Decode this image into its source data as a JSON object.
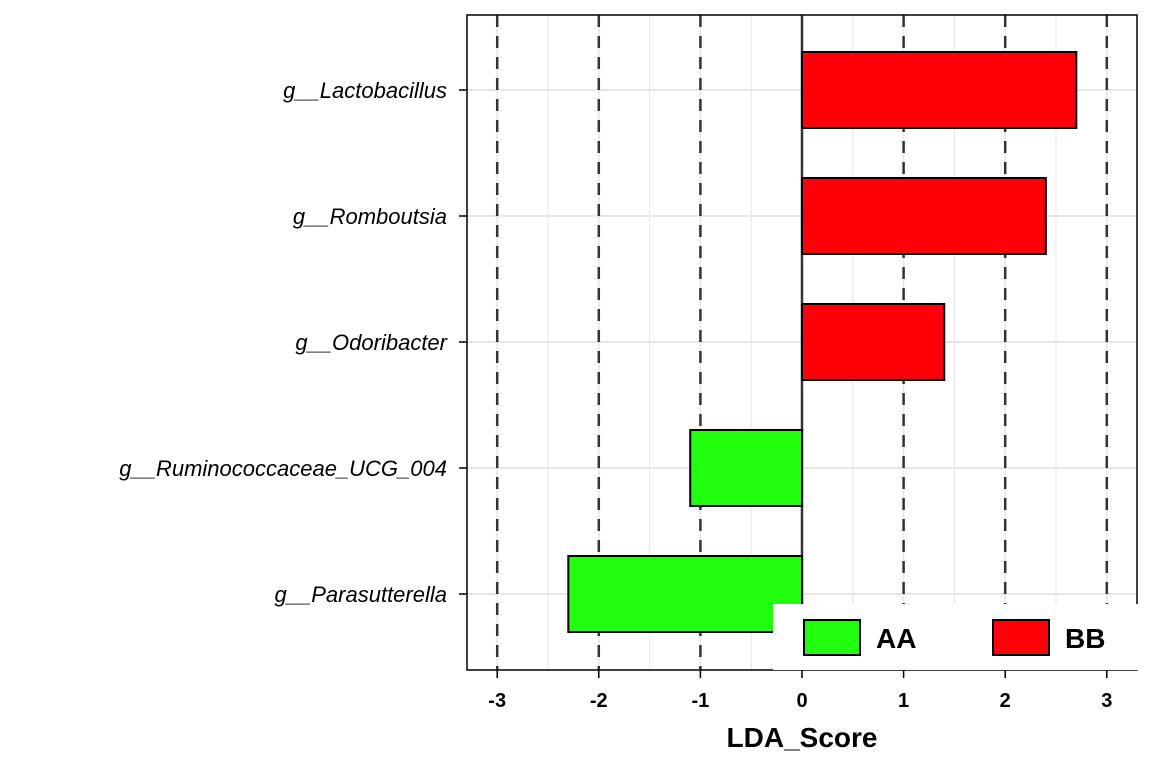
{
  "chart_data": {
    "type": "bar",
    "orientation": "horizontal",
    "categories": [
      "g__Lactobacillus",
      "g__Romboutsia",
      "g__Odoribacter",
      "g__Ruminococcaceae_UCG_004",
      "g__Parasutterella"
    ],
    "values": [
      2.7,
      2.4,
      1.4,
      -1.1,
      -2.3
    ],
    "groups": [
      "BB",
      "BB",
      "BB",
      "AA",
      "AA"
    ],
    "legend": [
      {
        "name": "AA",
        "color": "#22ff0e"
      },
      {
        "name": "BB",
        "color": "#ff0008"
      }
    ],
    "xlabel": "LDA_Score",
    "ylabel": "",
    "title": "",
    "xlim": [
      -3.3,
      3.3
    ],
    "xticks": [
      -3,
      -2,
      -1,
      0,
      1,
      2,
      3
    ],
    "reference_lines": [
      -3,
      -2,
      -1,
      1,
      2,
      3
    ],
    "grid": true,
    "legend_position": "bottom-right"
  }
}
